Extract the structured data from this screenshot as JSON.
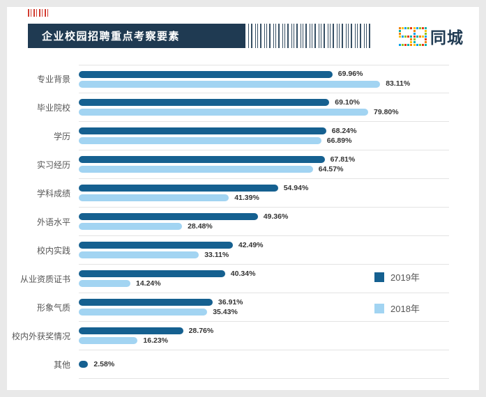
{
  "header": {
    "title": "企业校园招聘重点考察要素",
    "logo": {
      "digits": "58",
      "text": "同城",
      "text_color": "#1f3a52",
      "palette": [
        "#f08200",
        "#ffc20e",
        "#00a0e9",
        "#8fc31f",
        "#e8380d",
        "#00b2a9"
      ]
    }
  },
  "legend": {
    "items": [
      {
        "label": "2019年",
        "color": "#156090"
      },
      {
        "label": "2018年",
        "color": "#a2d4f2"
      }
    ]
  },
  "chart_data": {
    "type": "bar",
    "orientation": "horizontal",
    "title": "企业校园招聘重点考察要素",
    "categories": [
      "专业背景",
      "毕业院校",
      "学历",
      "实习经历",
      "学科成绩",
      "外语水平",
      "校内实践",
      "从业资质证书",
      "形象气质",
      "校内外获奖情况",
      "其他"
    ],
    "series": [
      {
        "name": "2019年",
        "color": "#156090",
        "values": [
          69.96,
          69.1,
          68.24,
          67.81,
          54.94,
          49.36,
          42.49,
          40.34,
          36.91,
          28.76,
          2.58
        ]
      },
      {
        "name": "2018年",
        "color": "#a2d4f2",
        "values": [
          83.11,
          79.8,
          66.89,
          64.57,
          41.39,
          28.48,
          33.11,
          14.24,
          35.43,
          16.23,
          null
        ]
      }
    ],
    "value_suffix": "%",
    "value_decimals": 2,
    "xlim": [
      0,
      100
    ],
    "grid": "row-separators",
    "legend_position": "right-middle"
  }
}
